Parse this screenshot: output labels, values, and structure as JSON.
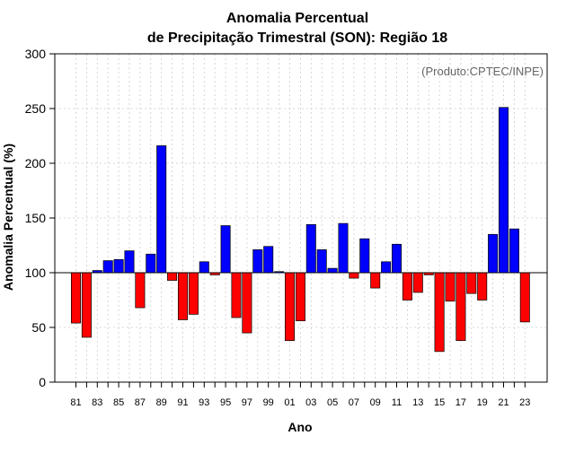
{
  "chart_data": {
    "type": "bar",
    "title_line1": "Anomalia Percentual",
    "title_line2": "de Precipitação Trimestral (SON): Região 18",
    "watermark": "(Produto:CPTEC/INPE)",
    "xlabel": "Ano",
    "ylabel": "Anomalia Percentual (%)",
    "ylim": [
      0,
      300
    ],
    "yticks": [
      0,
      50,
      100,
      150,
      200,
      250,
      300
    ],
    "baseline": 100,
    "grid": true,
    "colors": {
      "above": "#0000ff",
      "below": "#ff0000",
      "axis": "#000000",
      "grid": "#cccccc"
    },
    "categories": [
      "81",
      "82",
      "83",
      "84",
      "85",
      "86",
      "87",
      "88",
      "89",
      "90",
      "91",
      "92",
      "93",
      "94",
      "95",
      "96",
      "97",
      "98",
      "99",
      "00",
      "01",
      "02",
      "03",
      "04",
      "05",
      "06",
      "07",
      "08",
      "09",
      "10",
      "11",
      "12",
      "13",
      "14",
      "15",
      "16",
      "17",
      "18",
      "19",
      "20",
      "21",
      "22",
      "23"
    ],
    "xtick_labels": [
      "81",
      "83",
      "85",
      "87",
      "89",
      "91",
      "93",
      "95",
      "97",
      "99",
      "01",
      "03",
      "05",
      "07",
      "09",
      "11",
      "13",
      "15",
      "17",
      "19",
      "21",
      "23"
    ],
    "values": [
      54,
      41,
      102,
      111,
      112,
      120,
      68,
      117,
      216,
      93,
      57,
      62,
      110,
      98,
      143,
      59,
      45,
      121,
      124,
      101,
      38,
      56,
      144,
      121,
      104,
      145,
      95,
      131,
      86,
      110,
      126,
      75,
      82,
      98,
      28,
      74,
      38,
      81,
      75,
      135,
      251,
      140,
      55
    ]
  }
}
